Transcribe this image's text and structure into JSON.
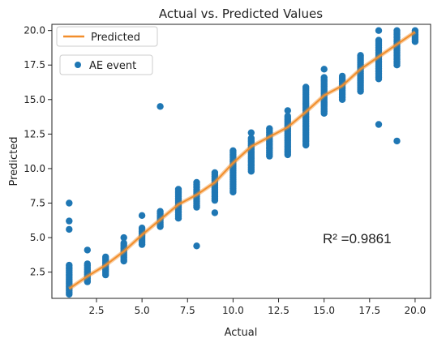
{
  "chart_data": {
    "type": "scatter",
    "title": "Actual vs. Predicted Values",
    "xlabel": "Actual",
    "ylabel": "Predicted",
    "xlim": [
      0.05,
      20.85
    ],
    "ylim": [
      0.6,
      20.45
    ],
    "xticks": [
      "2.5",
      "5.0",
      "7.5",
      "10.0",
      "12.5",
      "15.0",
      "17.5",
      "20.0"
    ],
    "yticks": [
      "2.5",
      "5.0",
      "7.5",
      "10.0",
      "12.5",
      "15.0",
      "17.5",
      "20.0"
    ],
    "grid": false,
    "legend_placement": "top-left",
    "colors": {
      "line": "#f28e2b",
      "points": "#1f77b4"
    },
    "annotation": "R² =0.9861",
    "series": [
      {
        "name": "Predicted",
        "kind": "line",
        "x": [
          1,
          2,
          3,
          4,
          5,
          6,
          7,
          8,
          9,
          10,
          11,
          12,
          13,
          14,
          15,
          16,
          17,
          18,
          19,
          20
        ],
        "y": [
          1.3,
          2.2,
          3.0,
          4.0,
          5.2,
          6.3,
          7.4,
          8.1,
          9.0,
          10.4,
          11.6,
          12.3,
          13.0,
          14.1,
          15.3,
          16.0,
          17.2,
          18.1,
          19.0,
          19.9
        ]
      },
      {
        "name": "AE event",
        "kind": "scatter",
        "columns": [
          {
            "x": 1,
            "ymin": 0.9,
            "ymax": 3.0,
            "extra": [
              5.6,
              6.2,
              7.5
            ]
          },
          {
            "x": 2,
            "ymin": 1.8,
            "ymax": 3.1,
            "extra": [
              4.1
            ]
          },
          {
            "x": 3,
            "ymin": 2.3,
            "ymax": 3.6,
            "extra": []
          },
          {
            "x": 4,
            "ymin": 3.3,
            "ymax": 4.6,
            "extra": [
              5.0
            ]
          },
          {
            "x": 5,
            "ymin": 4.5,
            "ymax": 5.7,
            "extra": [
              6.6
            ]
          },
          {
            "x": 6,
            "ymin": 5.8,
            "ymax": 6.9,
            "extra": [
              14.5
            ]
          },
          {
            "x": 7,
            "ymin": 6.4,
            "ymax": 8.5,
            "extra": []
          },
          {
            "x": 8,
            "ymin": 7.2,
            "ymax": 9.0,
            "extra": [
              4.4
            ]
          },
          {
            "x": 9,
            "ymin": 7.7,
            "ymax": 9.7,
            "extra": [
              6.8
            ]
          },
          {
            "x": 10,
            "ymin": 8.3,
            "ymax": 11.3,
            "extra": []
          },
          {
            "x": 11,
            "ymin": 9.8,
            "ymax": 12.2,
            "extra": [
              12.6
            ]
          },
          {
            "x": 12,
            "ymin": 10.9,
            "ymax": 12.9,
            "extra": []
          },
          {
            "x": 13,
            "ymin": 11.0,
            "ymax": 13.8,
            "extra": [
              14.2
            ]
          },
          {
            "x": 14,
            "ymin": 11.7,
            "ymax": 15.9,
            "extra": []
          },
          {
            "x": 15,
            "ymin": 14.0,
            "ymax": 16.6,
            "extra": [
              17.2
            ]
          },
          {
            "x": 16,
            "ymin": 15.0,
            "ymax": 16.7,
            "extra": []
          },
          {
            "x": 17,
            "ymin": 15.6,
            "ymax": 18.2,
            "extra": []
          },
          {
            "x": 18,
            "ymin": 16.5,
            "ymax": 19.3,
            "extra": [
              13.2,
              20.0
            ]
          },
          {
            "x": 19,
            "ymin": 17.5,
            "ymax": 20.0,
            "extra": [
              12.0
            ]
          },
          {
            "x": 20,
            "ymin": 19.2,
            "ymax": 20.0,
            "extra": []
          }
        ]
      }
    ]
  }
}
